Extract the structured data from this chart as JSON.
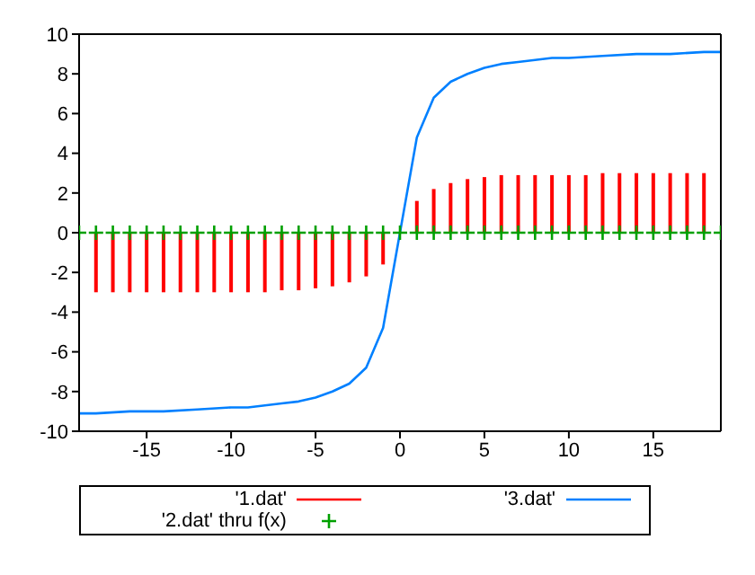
{
  "chart_data": {
    "type": "line",
    "xlim": [
      -19,
      19
    ],
    "xticks": [
      -15,
      -10,
      -5,
      0,
      5,
      10,
      15
    ],
    "ylim": [
      -10,
      10
    ],
    "yticks": [
      -10,
      -8,
      -6,
      -4,
      -2,
      0,
      2,
      4,
      6,
      8,
      10
    ],
    "grid": false,
    "legend": "bottom",
    "series": [
      {
        "name": "'1.dat'",
        "type": "bar",
        "color": "#ff0000",
        "x": [
          -18,
          -17,
          -16,
          -15,
          -14,
          -13,
          -12,
          -11,
          -10,
          -9,
          -8,
          -7,
          -6,
          -5,
          -4,
          -3,
          -2,
          -1,
          1,
          2,
          3,
          4,
          5,
          6,
          7,
          8,
          9,
          10,
          11,
          12,
          13,
          14,
          15,
          16,
          17,
          18
        ],
        "values": [
          -3,
          -3,
          -3,
          -3,
          -3,
          -3,
          -3,
          -3,
          -3,
          -3,
          -3,
          -2.9,
          -2.9,
          -2.8,
          -2.7,
          -2.5,
          -2.2,
          -1.6,
          1.6,
          2.2,
          2.5,
          2.7,
          2.8,
          2.9,
          2.9,
          2.9,
          2.9,
          2.9,
          2.9,
          3,
          3,
          3,
          3,
          3,
          3,
          3
        ]
      },
      {
        "name": "'2.dat' thru f(x)",
        "type": "scatter",
        "marker": "cross",
        "color": "#00a000",
        "x": [
          -19,
          -18,
          -17,
          -16,
          -15,
          -14,
          -13,
          -12,
          -11,
          -10,
          -9,
          -8,
          -7,
          -6,
          -5,
          -4,
          -3,
          -2,
          -1,
          0,
          1,
          2,
          3,
          4,
          5,
          6,
          7,
          8,
          9,
          10,
          11,
          12,
          13,
          14,
          15,
          16,
          17,
          18,
          19
        ],
        "values": [
          0,
          0,
          0,
          0,
          0,
          0,
          0,
          0,
          0,
          0,
          0,
          0,
          0,
          0,
          0,
          0,
          0,
          0,
          0,
          0,
          0,
          0,
          0,
          0,
          0,
          0,
          0,
          0,
          0,
          0,
          0,
          0,
          0,
          0,
          0,
          0,
          0,
          0,
          0
        ]
      },
      {
        "name": "'3.dat'",
        "marker": "none",
        "line_style": "solid",
        "color": "#0080ff",
        "x": [
          -19,
          -18,
          -16,
          -14,
          -12,
          -10,
          -9,
          -8,
          -7,
          -6,
          -5,
          -4,
          -3,
          -2,
          -1,
          0,
          1,
          2,
          3,
          4,
          5,
          6,
          7,
          8,
          9,
          10,
          12,
          14,
          16,
          18,
          19
        ],
        "values": [
          -9.1,
          -9.1,
          -9.0,
          -9.0,
          -8.9,
          -8.8,
          -8.8,
          -8.7,
          -8.6,
          -8.5,
          -8.3,
          -8.0,
          -7.6,
          -6.8,
          -4.8,
          0,
          4.8,
          6.8,
          7.6,
          8.0,
          8.3,
          8.5,
          8.6,
          8.7,
          8.8,
          8.8,
          8.9,
          9.0,
          9.0,
          9.1,
          9.1
        ]
      }
    ]
  }
}
